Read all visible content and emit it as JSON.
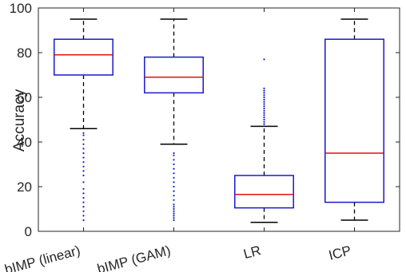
{
  "chart_data": {
    "type": "box",
    "title": "",
    "xlabel": "",
    "ylabel": "Accuracy",
    "ylim": [
      0,
      100
    ],
    "yticks": [
      0,
      20,
      40,
      60,
      80,
      100
    ],
    "grid": false,
    "categories": [
      "bIMP (linear)",
      "bIMP (GAM)",
      "LR",
      "ICP"
    ],
    "boxes": [
      {
        "name": "bIMP (linear)",
        "whisker_low": 46,
        "q1": 70,
        "median": 79,
        "q3": 86,
        "whisker_high": 95,
        "outliers": [
          5,
          7,
          9,
          11,
          13,
          15,
          17,
          19,
          22,
          25,
          27,
          29,
          31,
          33,
          35,
          37,
          39,
          41,
          43,
          44
        ]
      },
      {
        "name": "bIMP (GAM)",
        "whisker_low": 39,
        "q1": 62,
        "median": 69,
        "q3": 78,
        "whisker_high": 95,
        "outliers": [
          5,
          6,
          7,
          8,
          9,
          10,
          11,
          12,
          14,
          16,
          18,
          20,
          22,
          24,
          26,
          28,
          30,
          32,
          34,
          35
        ]
      },
      {
        "name": "LR",
        "whisker_low": 4,
        "q1": 10.5,
        "median": 16.5,
        "q3": 25,
        "whisker_high": 47,
        "outliers": [
          48,
          49,
          50,
          51,
          52,
          53,
          54,
          55,
          56,
          57,
          58,
          59,
          60,
          61,
          62,
          63,
          64,
          77
        ]
      },
      {
        "name": "ICP",
        "whisker_low": 5,
        "q1": 13,
        "median": 35,
        "q3": 86,
        "whisker_high": 95,
        "outliers": []
      }
    ],
    "colors": {
      "box": "#1a1acc",
      "median": "#e01010",
      "whisker": "#000000",
      "outlier": "#1a1acc",
      "axis": "#262626"
    }
  }
}
